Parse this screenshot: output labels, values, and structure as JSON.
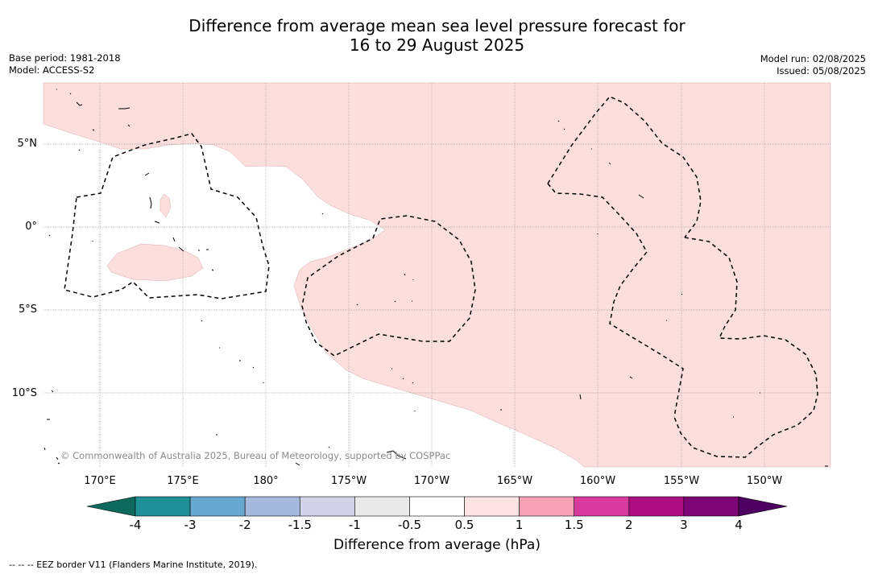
{
  "title": {
    "line1": "Difference from average mean sea level pressure forecast for",
    "line2": "16 to 29 August 2025"
  },
  "meta_left": {
    "base_period": "Base period: 1981-2018",
    "model": "Model: ACCESS-S2"
  },
  "meta_right": {
    "model_run": "Model run: 02/08/2025",
    "issued": "Issued: 05/08/2025"
  },
  "copyright": "© Commonwealth of Australia 2025, Bureau of Meteorology, supported by COSPPac",
  "map": {
    "lat_labels": [
      "5°N",
      "0°",
      "5°S",
      "10°S"
    ],
    "lon_labels": [
      "170°E",
      "175°E",
      "180°",
      "175°W",
      "170°W",
      "165°W",
      "160°W",
      "155°W",
      "150°W"
    ],
    "fill_color_0_5_to_1": "#fcdedd"
  },
  "colorbar": {
    "title": "Difference from average (hPa)",
    "ticks": [
      "-4",
      "-3",
      "-2",
      "-1.5",
      "-1",
      "-0.5",
      "0.5",
      "1",
      "1.5",
      "2",
      "3",
      "4"
    ],
    "colors": [
      "#0f6a5e",
      "#1e9096",
      "#66a8d0",
      "#a5b9dc",
      "#d2d2e8",
      "#e9e9e9",
      "#ffffff",
      "#fde3e2",
      "#f6a0b4",
      "#d83a9e",
      "#ac0e82",
      "#7d0575",
      "#4e0062"
    ]
  },
  "footer": "--  --  -- EEZ border V11 (Flanders Marine Institute, 2019)."
}
